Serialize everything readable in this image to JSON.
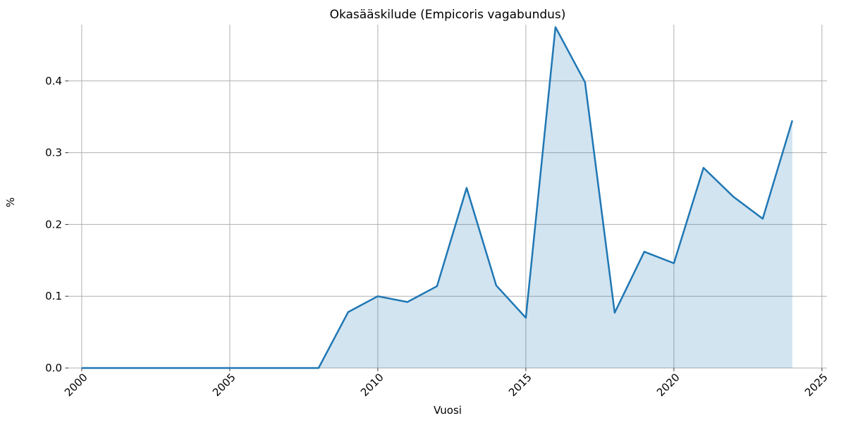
{
  "figure": {
    "title": "Okasääskilude (Empicoris vagabundus)",
    "xlabel": "Vuosi",
    "ylabel": "%"
  },
  "chart_data": {
    "type": "area",
    "title": "Okasääskilude (Empicoris vagabundus)",
    "xlabel": "Vuosi",
    "ylabel": "%",
    "x": [
      2000,
      2001,
      2002,
      2003,
      2004,
      2005,
      2006,
      2007,
      2008,
      2009,
      2010,
      2011,
      2012,
      2013,
      2014,
      2015,
      2016,
      2017,
      2018,
      2019,
      2020,
      2021,
      2022,
      2023,
      2024
    ],
    "series": [
      {
        "name": "Okasääskilude (Empicoris vagabundus)",
        "values": [
          0,
          0,
          0,
          0,
          0,
          0,
          0,
          0,
          0,
          0.078,
          0.1,
          0.092,
          0.114,
          0.251,
          0.115,
          0.07,
          0.475,
          0.398,
          0.077,
          0.162,
          0.146,
          0.279,
          0.239,
          0.208,
          0.345
        ]
      }
    ],
    "xticks": [
      2000,
      2005,
      2010,
      2015,
      2020,
      2025
    ],
    "yticks": [
      0.0,
      0.1,
      0.2,
      0.3,
      0.4
    ],
    "xlim": [
      1999.55,
      2025.17
    ],
    "ylim": [
      0,
      0.4784
    ],
    "x_tick_rotation": 45,
    "grid": true,
    "legend": "none",
    "colors": {
      "line": "#1f77b4",
      "fill": "rgba(31,119,180,0.2)",
      "grid": "#b0b0b0",
      "tick": "#333333",
      "text": "#000000"
    },
    "line_width": 2.5
  }
}
